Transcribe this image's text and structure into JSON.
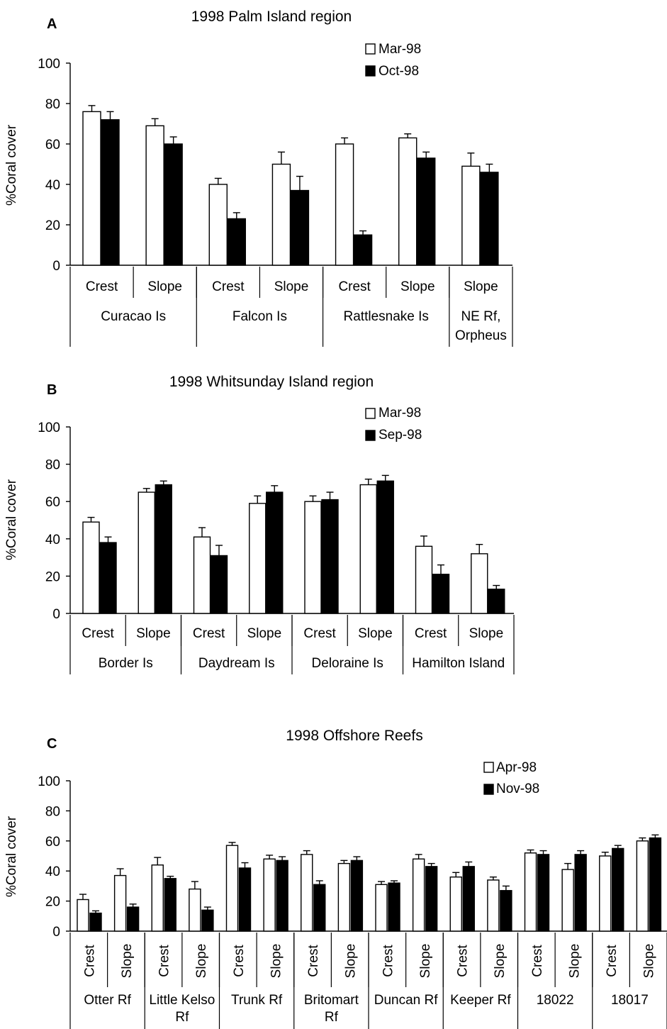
{
  "chart_data": [
    {
      "type": "bar",
      "panel": "A",
      "title": "1998 Palm Island region",
      "ylabel": "%Coral cover",
      "ylim": [
        0,
        100
      ],
      "yticks": [
        "0",
        "20",
        "40",
        "60",
        "80",
        "100"
      ],
      "grid": false,
      "legend_placement": "top-right",
      "categories": [
        "Crest",
        "Slope",
        "Crest",
        "Slope",
        "Crest",
        "Slope",
        "Slope"
      ],
      "groups": [
        {
          "label": "Curacao Is",
          "span": 2
        },
        {
          "label": "Falcon Is",
          "span": 2
        },
        {
          "label": "Rattlesnake Is",
          "span": 2
        },
        {
          "label": "NE Rf, Orpheus",
          "span": 1
        }
      ],
      "series": [
        {
          "name": "Mar-98",
          "color": "#ffffff",
          "values": [
            76,
            69,
            40,
            50,
            60,
            63,
            49
          ],
          "errors": [
            3,
            3.5,
            3,
            6,
            3,
            2,
            6.5
          ]
        },
        {
          "name": "Oct-98",
          "color": "#000000",
          "values": [
            72,
            60,
            23,
            37,
            15,
            53,
            46
          ],
          "errors": [
            4,
            3.5,
            3,
            7,
            2,
            3,
            4
          ]
        }
      ]
    },
    {
      "type": "bar",
      "panel": "B",
      "title": "1998 Whitsunday Island region",
      "ylabel": "%Coral cover",
      "ylim": [
        0,
        100
      ],
      "yticks": [
        "0",
        "20",
        "40",
        "60",
        "80",
        "100"
      ],
      "grid": false,
      "legend_placement": "top-right",
      "categories": [
        "Crest",
        "Slope",
        "Crest",
        "Slope",
        "Crest",
        "Slope",
        "Crest",
        "Slope"
      ],
      "groups": [
        {
          "label": "Border Is",
          "span": 2
        },
        {
          "label": "Daydream Is",
          "span": 2
        },
        {
          "label": "Deloraine Is",
          "span": 2
        },
        {
          "label": "Hamilton Island",
          "span": 2
        }
      ],
      "series": [
        {
          "name": "Mar-98",
          "color": "#ffffff",
          "values": [
            49,
            65,
            41,
            59,
            60,
            69,
            36,
            32
          ],
          "errors": [
            2.5,
            2,
            5,
            4,
            3,
            3,
            5.5,
            5
          ]
        },
        {
          "name": "Sep-98",
          "color": "#000000",
          "values": [
            38,
            69,
            31,
            65,
            61,
            71,
            21,
            13
          ],
          "errors": [
            3,
            2,
            5.5,
            3.5,
            4,
            3,
            5,
            2
          ]
        }
      ]
    },
    {
      "type": "bar",
      "panel": "C",
      "title": "1998 Offshore Reefs",
      "ylabel": "%Coral cover",
      "ylim": [
        0,
        100
      ],
      "yticks": [
        "0",
        "20",
        "40",
        "60",
        "80",
        "100"
      ],
      "grid": false,
      "legend_placement": "top-right",
      "categories": [
        "Crest",
        "Slope",
        "Crest",
        "Slope",
        "Crest",
        "Slope",
        "Crest",
        "Slope",
        "Crest",
        "Slope",
        "Crest",
        "Slope",
        "Crest",
        "Slope",
        "Crest",
        "Slope"
      ],
      "groups": [
        {
          "label": "Otter Rf",
          "span": 2
        },
        {
          "label": "Little Kelso Rf",
          "span": 2
        },
        {
          "label": "Trunk Rf",
          "span": 2
        },
        {
          "label": "Britomart Rf",
          "span": 2
        },
        {
          "label": "Duncan Rf",
          "span": 2
        },
        {
          "label": "Keeper Rf",
          "span": 2
        },
        {
          "label": "18022",
          "span": 2
        },
        {
          "label": "18017",
          "span": 2
        }
      ],
      "series": [
        {
          "name": "Apr-98",
          "color": "#ffffff",
          "values": [
            21,
            37,
            44,
            28,
            57,
            48,
            51,
            45,
            31,
            48,
            36,
            34,
            52,
            41,
            50,
            60
          ],
          "errors": [
            3.5,
            4.5,
            5,
            5,
            2,
            2.5,
            2.5,
            2,
            2,
            3,
            3,
            2,
            2,
            4,
            2.5,
            2
          ]
        },
        {
          "name": "Nov-98",
          "color": "#000000",
          "values": [
            12,
            16,
            35,
            14,
            42,
            47,
            31,
            47,
            32,
            43,
            43,
            27,
            51,
            51,
            55,
            62
          ],
          "errors": [
            1.5,
            2,
            1.5,
            2,
            3.5,
            2.5,
            2.5,
            2.5,
            1.5,
            2,
            3,
            3,
            2.5,
            2.5,
            2,
            2
          ]
        }
      ]
    }
  ]
}
